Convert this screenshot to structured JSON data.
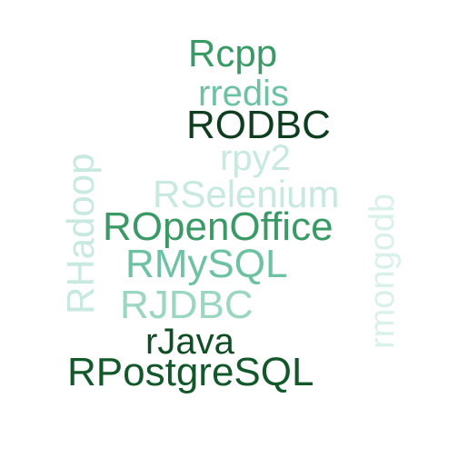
{
  "word_cloud": {
    "words": [
      {
        "text": "Rcpp",
        "color": "#3a9a66"
      },
      {
        "text": "rredis",
        "color": "#6cc2a2"
      },
      {
        "text": "RODBC",
        "color": "#0f3d20"
      },
      {
        "text": "rpy2",
        "color": "#c7e9df"
      },
      {
        "text": "RSelenium",
        "color": "#c7e9df"
      },
      {
        "text": "ROpenOffice",
        "color": "#3a9a66"
      },
      {
        "text": "RMySQL",
        "color": "#6cc2a2"
      },
      {
        "text": "RJDBC",
        "color": "#9ad6c0"
      },
      {
        "text": "rJava",
        "color": "#0f4d25"
      },
      {
        "text": "RPostgreSQL",
        "color": "#13582a"
      },
      {
        "text": "RHadoop",
        "color": "#c7e9df"
      },
      {
        "text": "rmongodb",
        "color": "#daf0ea"
      }
    ]
  }
}
